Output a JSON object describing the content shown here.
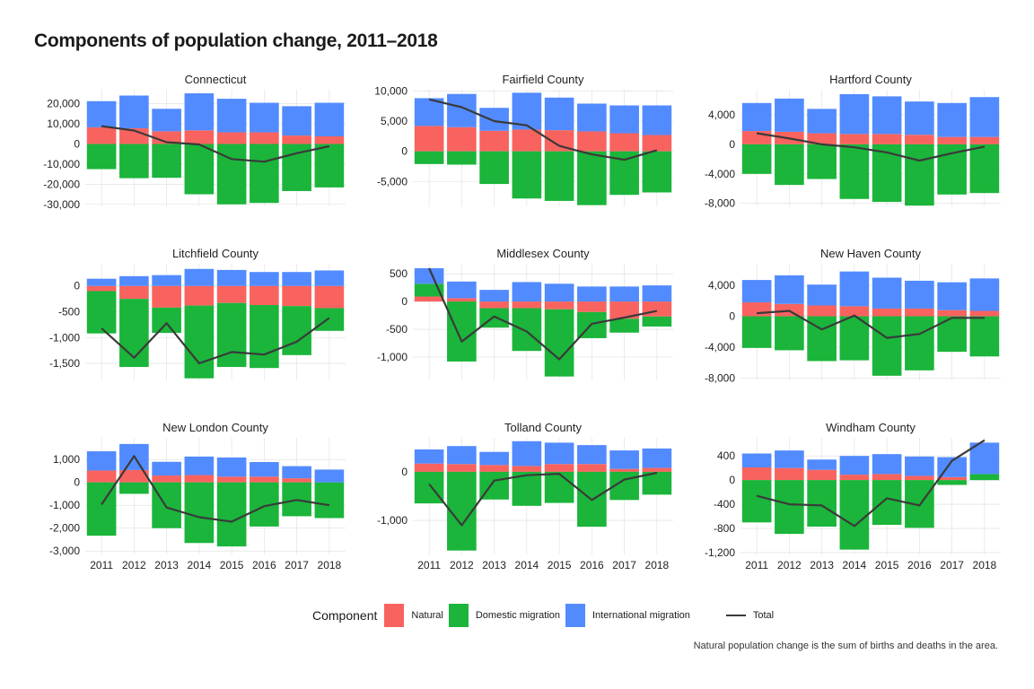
{
  "title": "Components of population change, 2011–2018",
  "caption": "Natural population change is the sum of births and deaths in the area.",
  "legend": {
    "title": "Component",
    "items": [
      {
        "label": "Natural",
        "color": "#F8635F"
      },
      {
        "label": "Domestic migration",
        "color": "#1AB53A"
      },
      {
        "label": "International migration",
        "color": "#528BFF"
      }
    ],
    "line_label": "Total",
    "line_color": "#3A3A3A"
  },
  "chart_data": [
    {
      "type": "bar",
      "title": "Connecticut",
      "categories": [
        "2011",
        "2012",
        "2013",
        "2014",
        "2015",
        "2016",
        "2017",
        "2018"
      ],
      "ylim": [
        -31000,
        27000
      ],
      "yticks": [
        20000,
        10000,
        0,
        -10000,
        -20000,
        -30000
      ],
      "ytick_labels": [
        "20,000",
        "10,000",
        "0",
        "-10,000",
        "-20,000",
        "-30,000"
      ],
      "show_x": false,
      "series": [
        {
          "name": "Natural",
          "values": [
            8300,
            7800,
            6300,
            6800,
            5800,
            5800,
            4200,
            3800
          ]
        },
        {
          "name": "Domestic migration",
          "values": [
            -12500,
            -17000,
            -16800,
            -25000,
            -30000,
            -29300,
            -23400,
            -21600
          ]
        },
        {
          "name": "International migration",
          "values": [
            13000,
            16300,
            11200,
            18400,
            16700,
            14700,
            14600,
            16700
          ]
        }
      ],
      "total": [
        8900,
        6700,
        900,
        -200,
        -7500,
        -8800,
        -4600,
        -1100
      ]
    },
    {
      "type": "bar",
      "title": "Fairfield County",
      "categories": [
        "2011",
        "2012",
        "2013",
        "2014",
        "2015",
        "2016",
        "2017",
        "2018"
      ],
      "ylim": [
        -9100,
        10200
      ],
      "yticks": [
        10000,
        5000,
        0,
        -5000
      ],
      "ytick_labels": [
        "10,000",
        "5,000",
        "0",
        "-5,000"
      ],
      "show_x": false,
      "series": [
        {
          "name": "Natural",
          "values": [
            4200,
            4000,
            3400,
            3600,
            3500,
            3300,
            3000,
            2700
          ]
        },
        {
          "name": "Domestic migration",
          "values": [
            -2100,
            -2200,
            -5400,
            -7800,
            -8200,
            -8900,
            -7200,
            -6800
          ]
        },
        {
          "name": "International migration",
          "values": [
            4600,
            5500,
            3800,
            6100,
            5400,
            4600,
            4600,
            4900
          ]
        }
      ],
      "total": [
        8600,
        7300,
        5000,
        4300,
        900,
        -500,
        -1400,
        200
      ]
    },
    {
      "type": "bar",
      "title": "Hartford County",
      "categories": [
        "2011",
        "2012",
        "2013",
        "2014",
        "2015",
        "2016",
        "2017",
        "2018"
      ],
      "ylim": [
        -8400,
        7400
      ],
      "yticks": [
        4000,
        0,
        -4000,
        -8000
      ],
      "ytick_labels": [
        "4,000",
        "0",
        "-4,000",
        "-8,000"
      ],
      "show_x": false,
      "series": [
        {
          "name": "Natural",
          "values": [
            1800,
            1700,
            1500,
            1400,
            1400,
            1300,
            1000,
            1000
          ]
        },
        {
          "name": "Domestic migration",
          "values": [
            -4000,
            -5500,
            -4700,
            -7400,
            -7800,
            -8300,
            -6800,
            -6600
          ]
        },
        {
          "name": "International migration",
          "values": [
            3800,
            4500,
            3300,
            5400,
            5100,
            4500,
            4600,
            5400
          ]
        }
      ],
      "total": [
        1500,
        800,
        0,
        -400,
        -1100,
        -2200,
        -1200,
        -300
      ]
    },
    {
      "type": "bar",
      "title": "Litchfield County",
      "categories": [
        "2011",
        "2012",
        "2013",
        "2014",
        "2015",
        "2016",
        "2017",
        "2018"
      ],
      "ylim": [
        -1830,
        430
      ],
      "yticks": [
        0,
        -500,
        -1000,
        -1500
      ],
      "ytick_labels": [
        "0",
        "-500",
        "-1,000",
        "-1,500"
      ],
      "show_x": false,
      "series": [
        {
          "name": "Natural",
          "values": [
            -100,
            -250,
            -420,
            -380,
            -330,
            -370,
            -390,
            -430
          ]
        },
        {
          "name": "Domestic migration",
          "values": [
            -820,
            -1320,
            -490,
            -1410,
            -1240,
            -1220,
            -950,
            -440
          ]
        },
        {
          "name": "International migration",
          "values": [
            140,
            190,
            210,
            330,
            310,
            270,
            270,
            300
          ]
        }
      ],
      "total": [
        -820,
        -1390,
        -720,
        -1500,
        -1280,
        -1330,
        -1080,
        -620
      ]
    },
    {
      "type": "bar",
      "title": "Middlesex County",
      "categories": [
        "2011",
        "2012",
        "2013",
        "2014",
        "2015",
        "2016",
        "2017",
        "2018"
      ],
      "ylim": [
        -1420,
        680
      ],
      "yticks": [
        500,
        0,
        -500,
        -1000
      ],
      "ytick_labels": [
        "500",
        "0",
        "-500",
        "-1,000"
      ],
      "show_x": false,
      "series": [
        {
          "name": "Natural",
          "values": [
            90,
            60,
            -120,
            -120,
            -140,
            -190,
            -310,
            -270
          ]
        },
        {
          "name": "Domestic migration",
          "values": [
            230,
            -1080,
            -350,
            -770,
            -1210,
            -470,
            -250,
            -180
          ]
        },
        {
          "name": "International migration",
          "values": [
            280,
            300,
            210,
            350,
            320,
            270,
            270,
            290
          ]
        }
      ],
      "total": [
        600,
        -720,
        -270,
        -540,
        -1040,
        -400,
        -290,
        -170
      ]
    },
    {
      "type": "bar",
      "title": "New Haven County",
      "categories": [
        "2011",
        "2012",
        "2013",
        "2014",
        "2015",
        "2016",
        "2017",
        "2018"
      ],
      "ylim": [
        -8300,
        6800
      ],
      "yticks": [
        4000,
        0,
        -4000,
        -8000
      ],
      "ytick_labels": [
        "4,000",
        "0",
        "-4,000",
        "-8,000"
      ],
      "show_x": false,
      "series": [
        {
          "name": "Natural",
          "values": [
            1800,
            1600,
            1400,
            1300,
            1000,
            1000,
            800,
            700
          ]
        },
        {
          "name": "Domestic migration",
          "values": [
            -4100,
            -4400,
            -5800,
            -5700,
            -7700,
            -7000,
            -4600,
            -5200
          ]
        },
        {
          "name": "International migration",
          "values": [
            2900,
            3700,
            2700,
            4500,
            4000,
            3600,
            3600,
            4200
          ]
        }
      ],
      "total": [
        400,
        700,
        -1700,
        100,
        -2800,
        -2300,
        -200,
        -200
      ]
    },
    {
      "type": "bar",
      "title": "New London County",
      "categories": [
        "2011",
        "2012",
        "2013",
        "2014",
        "2015",
        "2016",
        "2017",
        "2018"
      ],
      "ylim": [
        -3150,
        1950
      ],
      "yticks": [
        1000,
        0,
        -1000,
        -2000,
        -3000
      ],
      "ytick_labels": [
        "1,000",
        "0",
        "-1,000",
        "-2,000",
        "-3,000"
      ],
      "show_x": true,
      "series": [
        {
          "name": "Natural",
          "values": [
            520,
            540,
            300,
            320,
            250,
            250,
            180,
            0
          ]
        },
        {
          "name": "Domestic migration",
          "values": [
            -2330,
            -500,
            -2000,
            -2650,
            -2800,
            -1930,
            -1480,
            -1560
          ]
        },
        {
          "name": "International migration",
          "values": [
            840,
            1140,
            600,
            810,
            840,
            640,
            530,
            560
          ]
        }
      ],
      "total": [
        -970,
        1150,
        -1100,
        -1520,
        -1720,
        -1040,
        -770,
        -1000
      ]
    },
    {
      "type": "bar",
      "title": "Tolland County",
      "categories": [
        "2011",
        "2012",
        "2013",
        "2014",
        "2015",
        "2016",
        "2017",
        "2018"
      ],
      "ylim": [
        -1700,
        700
      ],
      "yticks": [
        0,
        -1000
      ],
      "ytick_labels": [
        "0",
        "-1,000"
      ],
      "show_x": true,
      "series": [
        {
          "name": "Natural",
          "values": [
            170,
            160,
            140,
            120,
            160,
            160,
            60,
            80
          ]
        },
        {
          "name": "Domestic migration",
          "values": [
            -650,
            -1620,
            -570,
            -700,
            -640,
            -1130,
            -580,
            -470
          ]
        },
        {
          "name": "International migration",
          "values": [
            290,
            370,
            270,
            510,
            440,
            390,
            380,
            400
          ]
        }
      ],
      "total": [
        -250,
        -1100,
        -180,
        -70,
        -40,
        -580,
        -160,
        -20
      ]
    },
    {
      "type": "bar",
      "title": "Windham County",
      "categories": [
        "2011",
        "2012",
        "2013",
        "2014",
        "2015",
        "2016",
        "2017",
        "2018"
      ],
      "ylim": [
        -1230,
        700
      ],
      "yticks": [
        400,
        0,
        -400,
        -800,
        -1200
      ],
      "ytick_labels": [
        "400",
        "0",
        "-400",
        "-800",
        "-1,200"
      ],
      "show_x": true,
      "series": [
        {
          "name": "Natural",
          "values": [
            210,
            200,
            170,
            90,
            100,
            70,
            50,
            0
          ]
        },
        {
          "name": "Domestic migration",
          "values": [
            -700,
            -890,
            -770,
            -1150,
            -740,
            -790,
            -80,
            100
          ]
        },
        {
          "name": "International migration",
          "values": [
            230,
            290,
            170,
            310,
            330,
            320,
            330,
            520
          ]
        }
      ],
      "total": [
        -260,
        -400,
        -420,
        -760,
        -300,
        -420,
        320,
        660
      ]
    }
  ]
}
